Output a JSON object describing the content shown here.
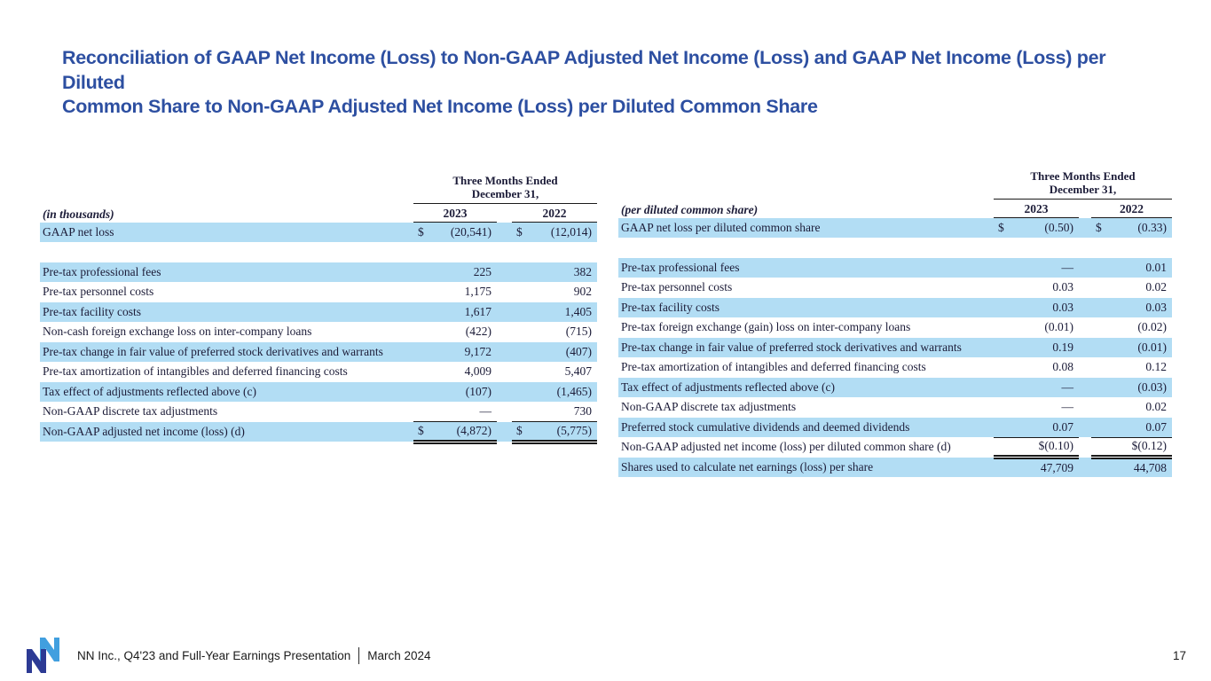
{
  "slide": {
    "title_line1": "Reconciliation of GAAP Net Income (Loss) to Non-GAAP Adjusted Net Income (Loss) and GAAP Net Income (Loss) per Diluted",
    "title_line2": "Common Share to Non-GAAP Adjusted Net Income (Loss) per Diluted Common Share",
    "page_number": "17"
  },
  "period_header": {
    "line1": "Three Months Ended",
    "line2": "December 31,"
  },
  "columns": {
    "y2023": "2023",
    "y2022": "2022"
  },
  "tables": {
    "left": {
      "unit_label": "(in thousands)",
      "rows": [
        {
          "label": "GAAP net loss",
          "c": [
            "$",
            "(20,541)",
            "$",
            "(12,014)"
          ],
          "hl": true
        },
        {
          "spacer": true
        },
        {
          "label": "Pre-tax professional fees",
          "c": [
            "",
            "225",
            "",
            "382"
          ],
          "hl": true
        },
        {
          "label": "Pre-tax personnel costs",
          "c": [
            "",
            "1,175",
            "",
            "902"
          ]
        },
        {
          "label": "Pre-tax facility costs",
          "c": [
            "",
            "1,617",
            "",
            "1,405"
          ],
          "hl": true
        },
        {
          "label": "Non-cash foreign exchange loss on inter-company loans",
          "c": [
            "",
            "(422)",
            "",
            "(715)"
          ]
        },
        {
          "label": "Pre-tax change in fair value of preferred stock derivatives and warrants",
          "c": [
            "",
            "9,172",
            "",
            "(407)"
          ],
          "hl": true
        },
        {
          "label": "Pre-tax amortization of intangibles and deferred financing costs",
          "c": [
            "",
            "4,009",
            "",
            "5,407"
          ]
        },
        {
          "label": "Tax effect of adjustments reflected above (c)",
          "c": [
            "",
            "(107)",
            "",
            "(1,465)"
          ],
          "hl": true
        },
        {
          "label": "Non-GAAP discrete tax adjustments",
          "c": [
            "",
            "—",
            "",
            "730"
          ],
          "rule": true
        },
        {
          "label": "Non-GAAP adjusted net income (loss)  (d)",
          "c": [
            "$",
            "(4,872)",
            "$",
            "(5,775)"
          ],
          "hl": true,
          "dbl": true
        }
      ]
    },
    "right": {
      "unit_label": "(per diluted common share)",
      "rows": [
        {
          "label": "GAAP net loss per diluted common share",
          "c": [
            "$",
            "(0.50)",
            "$",
            "(0.33)"
          ],
          "hl": true
        },
        {
          "spacer": true
        },
        {
          "label": "Pre-tax professional fees",
          "c": [
            "",
            "—",
            "",
            "0.01"
          ],
          "hl": true
        },
        {
          "label": "Pre-tax personnel costs",
          "c": [
            "",
            "0.03",
            "",
            "0.02"
          ]
        },
        {
          "label": "Pre-tax facility costs",
          "c": [
            "",
            "0.03",
            "",
            "0.03"
          ],
          "hl": true
        },
        {
          "label": "Pre-tax foreign exchange (gain) loss on inter-company loans",
          "c": [
            "",
            "(0.01)",
            "",
            "(0.02)"
          ]
        },
        {
          "label": "Pre-tax change in fair value of preferred stock derivatives and warrants",
          "c": [
            "",
            "0.19",
            "",
            "(0.01)"
          ],
          "hl": true
        },
        {
          "label": "Pre-tax amortization of intangibles and deferred financing costs",
          "c": [
            "",
            "0.08",
            "",
            "0.12"
          ]
        },
        {
          "label": "Tax effect of adjustments reflected above (c)",
          "c": [
            "",
            "—",
            "",
            "(0.03)"
          ],
          "hl": true
        },
        {
          "label": "Non-GAAP discrete tax adjustments",
          "c": [
            "",
            "—",
            "",
            "0.02"
          ]
        },
        {
          "label": "Preferred stock cumulative dividends and deemed dividends",
          "c": [
            "",
            "0.07",
            "",
            "0.07"
          ],
          "hl": true,
          "rule": true
        },
        {
          "label": "Non-GAAP adjusted net income (loss) per diluted common share  (d)",
          "c": [
            "",
            "$(0.10)",
            "",
            "$(0.12)"
          ],
          "dbl": true
        },
        {
          "label": "Shares used to calculate net earnings (loss) per share",
          "c": [
            "",
            "47,709",
            "",
            "44,708"
          ],
          "hl": true
        }
      ]
    }
  },
  "footer": {
    "text": "NN Inc., Q4'23 and Full-Year Earnings Presentation",
    "date": "March 2024"
  },
  "colors": {
    "row_highlight": "#b2ddf4",
    "title_blue": "#2d4fa1",
    "logo_navy": "#2c3a94",
    "logo_light_blue": "#419fdf"
  }
}
